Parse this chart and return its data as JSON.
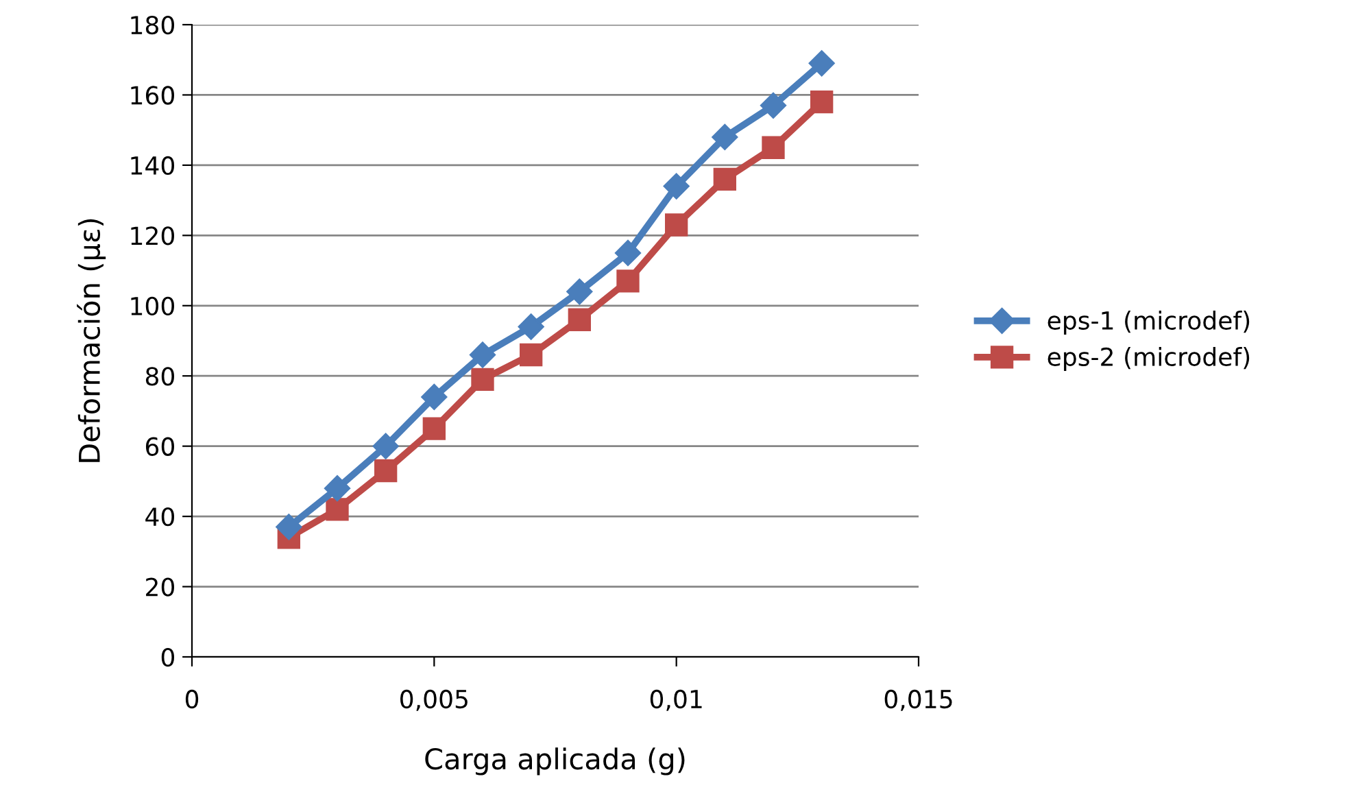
{
  "chart_data": {
    "type": "line",
    "xlabel": "Carga aplicada (g)",
    "ylabel": "Deformación (με)",
    "x": [
      0.002,
      0.003,
      0.004,
      0.005,
      0.006,
      0.007,
      0.008,
      0.009,
      0.01,
      0.011,
      0.012,
      0.013
    ],
    "series": [
      {
        "name": "eps-1 (microdef)",
        "color": "#4a7ebb",
        "marker": "diamond",
        "values": [
          37,
          48,
          60,
          74,
          86,
          94,
          104,
          115,
          134,
          148,
          157,
          169
        ]
      },
      {
        "name": "eps-2 (microdef)",
        "color": "#be4b48",
        "marker": "square",
        "values": [
          34,
          42,
          53,
          65,
          79,
          86,
          96,
          107,
          123,
          136,
          145,
          158
        ]
      }
    ],
    "xlim": [
      0,
      0.015
    ],
    "xticks": [
      0,
      {
        "value": 0.005,
        "label": "0,005"
      },
      {
        "value": 0.01,
        "label": "0,01"
      },
      {
        "value": 0.015,
        "label": "0,015"
      }
    ],
    "ylim": [
      0,
      180
    ],
    "yticks": [
      0,
      20,
      40,
      60,
      80,
      100,
      120,
      140,
      160,
      180
    ],
    "grid": "y",
    "legend": "right",
    "line_style": "solid"
  }
}
